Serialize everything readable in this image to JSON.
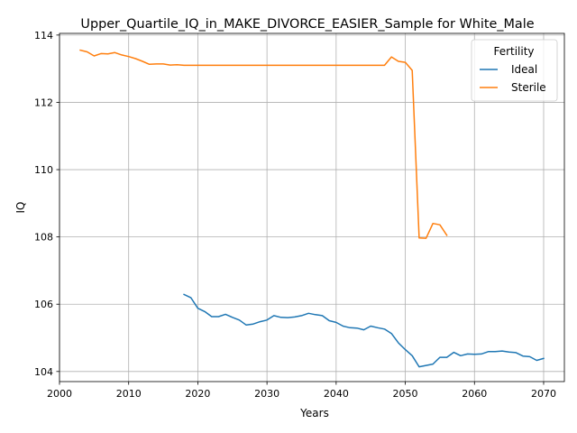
{
  "chart_data": {
    "type": "line",
    "title": "Upper_Quartile_IQ_in_MAKE_DIVORCE_EASIER_Sample for White_Male",
    "xlabel": "Years",
    "ylabel": "IQ",
    "xlim": [
      2000,
      2073
    ],
    "ylim": [
      103.7,
      114.05
    ],
    "xticks": [
      2000,
      2010,
      2020,
      2030,
      2040,
      2050,
      2060,
      2070
    ],
    "yticks": [
      104,
      106,
      108,
      110,
      112,
      114
    ],
    "grid": true,
    "legend": {
      "title": "Fertility",
      "placement": "top-right"
    },
    "series": [
      {
        "name": "Ideal",
        "color": "#1f77b4",
        "x": [
          2018,
          2019,
          2020,
          2021,
          2022,
          2023,
          2024,
          2025,
          2026,
          2027,
          2028,
          2029,
          2030,
          2031,
          2032,
          2033,
          2034,
          2035,
          2036,
          2037,
          2038,
          2039,
          2040,
          2041,
          2042,
          2043,
          2044,
          2045,
          2046,
          2047,
          2048,
          2049,
          2050,
          2051,
          2052,
          2053,
          2054,
          2055,
          2056,
          2057,
          2058,
          2059,
          2060,
          2061,
          2062,
          2063,
          2064,
          2065,
          2066,
          2067,
          2068,
          2069,
          2070
        ],
        "y": [
          106.29,
          106.19,
          105.88,
          105.78,
          105.63,
          105.63,
          105.7,
          105.61,
          105.53,
          105.38,
          105.41,
          105.48,
          105.53,
          105.66,
          105.61,
          105.6,
          105.62,
          105.66,
          105.73,
          105.69,
          105.66,
          105.51,
          105.46,
          105.35,
          105.3,
          105.29,
          105.24,
          105.35,
          105.3,
          105.26,
          105.13,
          104.85,
          104.65,
          104.47,
          104.14,
          104.18,
          104.22,
          104.42,
          104.42,
          104.57,
          104.47,
          104.52,
          104.51,
          104.52,
          104.59,
          104.59,
          104.61,
          104.58,
          104.56,
          104.46,
          104.44,
          104.33,
          104.39
        ]
      },
      {
        "name": "Sterile",
        "color": "#ff7f0e",
        "x": [
          2003,
          2004,
          2005,
          2006,
          2007,
          2008,
          2009,
          2010,
          2011,
          2012,
          2013,
          2014,
          2015,
          2016,
          2017,
          2018,
          2019,
          2020,
          2025,
          2030,
          2035,
          2040,
          2045,
          2047,
          2048,
          2049,
          2050,
          2051,
          2052,
          2053,
          2054,
          2055,
          2056
        ],
        "y": [
          113.55,
          113.5,
          113.38,
          113.45,
          113.44,
          113.48,
          113.41,
          113.36,
          113.3,
          113.22,
          113.13,
          113.14,
          113.14,
          113.11,
          113.12,
          113.1,
          113.1,
          113.1,
          113.1,
          113.1,
          113.1,
          113.1,
          113.1,
          113.1,
          113.35,
          113.22,
          113.19,
          112.95,
          107.97,
          107.96,
          108.4,
          108.36,
          108.05
        ]
      }
    ]
  }
}
